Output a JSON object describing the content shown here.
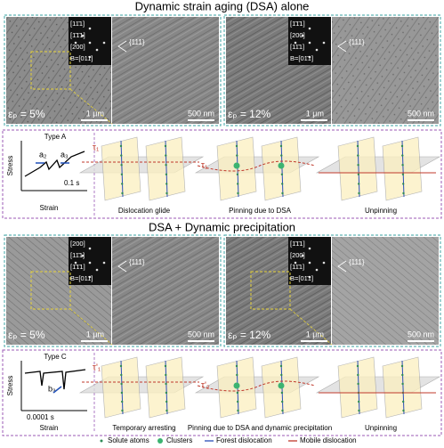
{
  "top_section": {
    "title": "Dynamic strain aging (DSA) alone",
    "panels": [
      {
        "strain_label": "εₚ = 5%",
        "scale_left": "1 μm",
        "scale_right": "500 nm",
        "diffraction": [
          "[11̄1]",
          "[1̄1̄1]",
          "[200]",
          "B=[011]"
        ],
        "annotation": "{111}"
      },
      {
        "strain_label": "εₚ = 12%",
        "scale_left": "1 μm",
        "scale_right": "500 nm",
        "diffraction": [
          "[1̄1̄1]",
          "[200]",
          "[11̄1]",
          "B=[01̄1]"
        ],
        "annotation": "{111}"
      }
    ],
    "schematic": {
      "curve_type": "Type A",
      "y_axis": "Stress",
      "x_axis": "Strain",
      "markers": [
        "a₂",
        "a₃"
      ],
      "time_scale": "0.1 s",
      "stages": [
        "Dislocation glide",
        "Pinning due to DSA",
        "Unpinning"
      ],
      "stress_labels": [
        "τ₁",
        "τ₁"
      ]
    }
  },
  "bottom_section": {
    "title": "DSA + Dynamic precipitation",
    "panels": [
      {
        "strain_label": "εₚ = 5%",
        "scale_left": "1 μm",
        "scale_right": "500 nm",
        "diffraction": [
          "[200]",
          "[11̄1]",
          "[1̄1̄1]",
          "B=[011]"
        ],
        "annotation": "{111}"
      },
      {
        "strain_label": "εₚ = 12%",
        "scale_left": "1 μm",
        "scale_right": "500 nm",
        "diffraction": [
          "[1̄1̄1]",
          "[200]",
          "[11̄1]",
          "B=[01̄1]"
        ],
        "annotation": "{111}"
      }
    ],
    "schematic": {
      "curve_type": "Type C",
      "y_axis": "Stress",
      "x_axis": "Strain",
      "markers": [
        "b₃"
      ],
      "time_scale": "0.0001 s",
      "stages": [
        "Temporary arresting",
        "Pinning due to DSA and dynamic precipitation",
        "Unpinning"
      ],
      "stress_labels": [
        "τ'₁",
        "τ'₂"
      ]
    }
  },
  "legend": [
    "Solute atoms",
    "Clusters",
    "Forest dislocation",
    "Mobile dislocation"
  ]
}
